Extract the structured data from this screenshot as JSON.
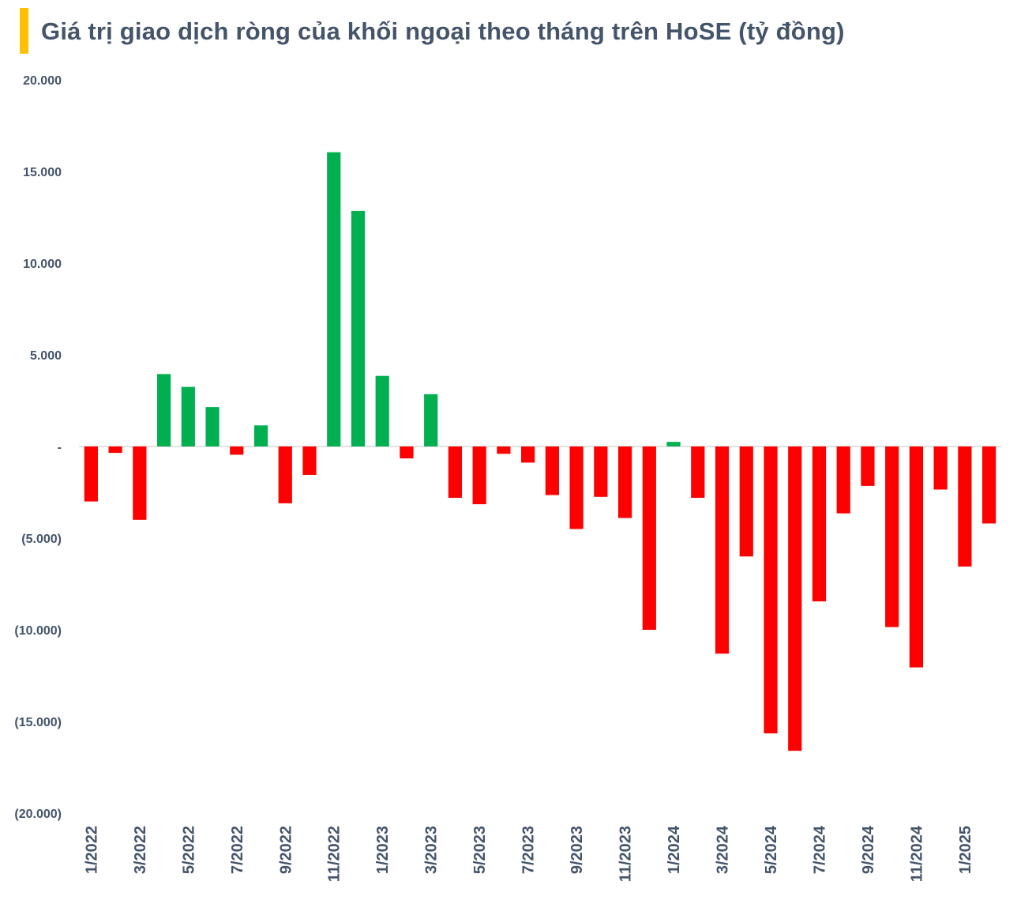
{
  "title": "Giá trị giao dịch ròng của khối ngoại theo tháng trên HoSE (tỷ đồng)",
  "colors": {
    "accent": "#ffc000",
    "positive": "#00b050",
    "negative": "#ff0000",
    "text": "#44546a",
    "zero_line": "#d9d9d9"
  },
  "chart_data": {
    "type": "bar",
    "title": "Giá trị giao dịch ròng của khối ngoại theo tháng trên HoSE (tỷ đồng)",
    "xlabel": "",
    "ylabel": "",
    "ylim": [
      -20000,
      20000
    ],
    "y_ticks": [
      20000,
      15000,
      10000,
      5000,
      0,
      -5000,
      -10000,
      -15000,
      -20000
    ],
    "y_tick_labels": [
      "20.000",
      "15.000",
      "10.000",
      "5.000",
      "-",
      "(5.000)",
      "(10.000)",
      "(15.000)",
      "(20.000)"
    ],
    "grid": false,
    "legend": "none",
    "categories": [
      "1/2022",
      "2/2022",
      "3/2022",
      "4/2022",
      "5/2022",
      "6/2022",
      "7/2022",
      "8/2022",
      "9/2022",
      "10/2022",
      "11/2022",
      "12/2022",
      "1/2023",
      "2/2023",
      "3/2023",
      "4/2023",
      "5/2023",
      "6/2023",
      "7/2023",
      "8/2023",
      "9/2023",
      "10/2023",
      "11/2023",
      "12/2023",
      "1/2024",
      "2/2024",
      "3/2024",
      "4/2024",
      "5/2024",
      "6/2024",
      "7/2024",
      "8/2024",
      "9/2024",
      "10/2024",
      "11/2024",
      "12/2024",
      "1/2025",
      "2/2025"
    ],
    "x_tick_labels": [
      "1/2022",
      "",
      "3/2022",
      "",
      "5/2022",
      "",
      "7/2022",
      "",
      "9/2022",
      "",
      "11/2022",
      "",
      "1/2023",
      "",
      "3/2023",
      "",
      "5/2023",
      "",
      "7/2023",
      "",
      "9/2023",
      "",
      "11/2023",
      "",
      "1/2024",
      "",
      "3/2024",
      "",
      "5/2024",
      "",
      "7/2024",
      "",
      "9/2024",
      "",
      "11/2024",
      "",
      "1/2025",
      ""
    ],
    "values": [
      -3000,
      -350,
      -4000,
      3950,
      3250,
      2150,
      -450,
      1150,
      -3100,
      -1550,
      16050,
      12850,
      3850,
      -650,
      2850,
      -2800,
      -3150,
      -400,
      -880,
      -2650,
      -4500,
      -2750,
      -3900,
      -10000,
      250,
      -2800,
      -11300,
      -6000,
      -15650,
      -16600,
      -8450,
      -3650,
      -2150,
      -9850,
      -12050,
      -2350,
      -6550,
      -4200
    ]
  }
}
